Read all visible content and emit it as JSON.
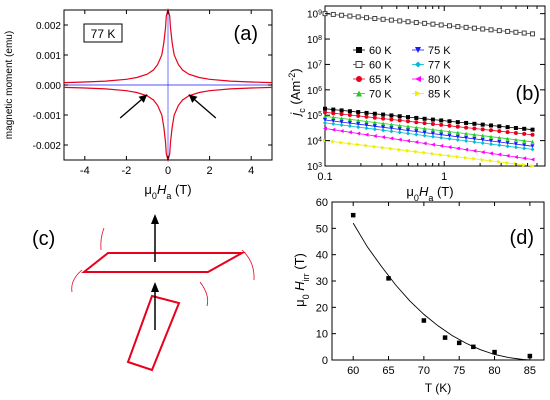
{
  "colors": {
    "red": "#e8001c",
    "axis": "#000000",
    "open": "#444444"
  },
  "chart_data": [
    {
      "id": "a",
      "panel_label": "(a)",
      "type": "line",
      "annotation": "77 K",
      "xlabel_parts": [
        "μ",
        "0",
        "H",
        "a",
        " (T)"
      ],
      "ylabel": "magnetic moment (emu)",
      "xlim": [
        -5,
        5
      ],
      "ylim": [
        -0.0025,
        0.0025
      ],
      "xticks": [
        -4,
        -2,
        0,
        2,
        4
      ],
      "xtick_labels": [
        "-4",
        "-2",
        "0",
        "2",
        "4"
      ],
      "yticks": [
        -0.002,
        -0.001,
        0.0,
        0.001,
        0.002
      ],
      "ytick_labels": [
        "-0.002",
        "-0.001",
        "0.000",
        "0.001",
        "0.002"
      ],
      "series": [
        {
          "color": "#e8001c",
          "points": [
            [
              -5,
              8e-05
            ],
            [
              -4,
              0.0001
            ],
            [
              -3,
              0.00013
            ],
            [
              -2,
              0.00019
            ],
            [
              -1.5,
              0.00025
            ],
            [
              -1,
              0.00036
            ],
            [
              -0.7,
              0.0005
            ],
            [
              -0.5,
              0.00068
            ],
            [
              -0.3,
              0.001
            ],
            [
              -0.2,
              0.0014
            ],
            [
              -0.12,
              0.0019
            ],
            [
              -0.08,
              0.0023
            ],
            [
              0,
              0.0025
            ],
            [
              0.08,
              0.0023
            ],
            [
              0.12,
              0.0019
            ],
            [
              0.2,
              0.0014
            ],
            [
              0.3,
              0.001
            ],
            [
              0.5,
              0.00068
            ],
            [
              0.7,
              0.0005
            ],
            [
              1,
              0.00036
            ],
            [
              1.5,
              0.00025
            ],
            [
              2,
              0.00019
            ],
            [
              3,
              0.00013
            ],
            [
              4,
              0.0001
            ],
            [
              5,
              8e-05
            ]
          ]
        },
        {
          "color": "#e8001c",
          "points": [
            [
              -5,
              -8e-05
            ],
            [
              -4,
              -0.0001
            ],
            [
              -3,
              -0.00013
            ],
            [
              -2,
              -0.00019
            ],
            [
              -1.5,
              -0.00025
            ],
            [
              -1,
              -0.00036
            ],
            [
              -0.7,
              -0.0005
            ],
            [
              -0.5,
              -0.00068
            ],
            [
              -0.3,
              -0.001
            ],
            [
              -0.2,
              -0.0014
            ],
            [
              -0.12,
              -0.0019
            ],
            [
              -0.08,
              -0.0023
            ],
            [
              0,
              -0.0025
            ],
            [
              0.08,
              -0.0023
            ],
            [
              0.12,
              -0.0019
            ],
            [
              0.2,
              -0.0014
            ],
            [
              0.3,
              -0.001
            ],
            [
              0.5,
              -0.00068
            ],
            [
              0.7,
              -0.0005
            ],
            [
              1,
              -0.00036
            ],
            [
              1.5,
              -0.00025
            ],
            [
              2,
              -0.00019
            ],
            [
              3,
              -0.00013
            ],
            [
              4,
              -0.0001
            ],
            [
              5,
              -8e-05
            ]
          ]
        }
      ],
      "arrows": [
        {
          "from": [
            -2.3,
            -0.0011
          ],
          "to": [
            -1.0,
            -0.00032
          ]
        },
        {
          "from": [
            2.3,
            -0.0011
          ],
          "to": [
            1.0,
            -0.00032
          ]
        }
      ]
    },
    {
      "id": "b",
      "panel_label": "(b)",
      "type": "scatter",
      "xscale": "log",
      "yscale": "log",
      "ylabel_parts": [
        "j",
        "c",
        " (Am",
        "-2",
        ")"
      ],
      "xlabel_parts": [
        "μ",
        "0",
        "H",
        "a",
        " (T)"
      ],
      "xlim": [
        0.1,
        7
      ],
      "ylim": [
        1000,
        2000000000
      ],
      "xticks": [
        0.1,
        1
      ],
      "xtick_labels": [
        "0.1",
        "1"
      ],
      "yticks": [
        1000,
        10000,
        100000,
        1000000,
        10000000,
        100000000,
        1000000000
      ],
      "ytick_labels": [
        [
          "10",
          "3"
        ],
        [
          "10",
          "4"
        ],
        [
          "10",
          "5"
        ],
        [
          "10",
          "6"
        ],
        [
          "10",
          "7"
        ],
        [
          "10",
          "8"
        ],
        [
          "10",
          "9"
        ]
      ],
      "legend": [
        {
          "name": "60 K",
          "color": "#000000",
          "marker": "square"
        },
        {
          "name": "60 K",
          "color": "#444444",
          "marker": "open-square"
        },
        {
          "name": "65 K",
          "color": "#e8001c",
          "marker": "circle"
        },
        {
          "name": "70 K",
          "color": "#22cc22",
          "marker": "triangle-up"
        },
        {
          "name": "75 K",
          "color": "#1a1aff",
          "marker": "triangle-down"
        },
        {
          "name": "77 K",
          "color": "#00bcd4",
          "marker": "diamond"
        },
        {
          "name": "80 K",
          "color": "#ff00ff",
          "marker": "triangle-left"
        },
        {
          "name": "85 K",
          "color": "#eeee00",
          "marker": "triangle-right"
        }
      ],
      "series": [
        {
          "name": "60 K",
          "color": "#000000",
          "marker": "square",
          "start": 180000,
          "end": 27000
        },
        {
          "name": "60 K",
          "color": "#444444",
          "marker": "open-square",
          "start": 1000000000,
          "end": 160000000
        },
        {
          "name": "65 K",
          "color": "#e8001c",
          "marker": "circle",
          "start": 130000,
          "end": 17000
        },
        {
          "name": "70 K",
          "color": "#22cc22",
          "marker": "triangle-up",
          "start": 90000,
          "end": 9000
        },
        {
          "name": "75 K",
          "color": "#1a1aff",
          "marker": "triangle-down",
          "start": 65000,
          "end": 6000
        },
        {
          "name": "77 K",
          "color": "#00bcd4",
          "marker": "diamond",
          "start": 50000,
          "end": 4500
        },
        {
          "name": "80 K",
          "color": "#ff00ff",
          "marker": "triangle-left",
          "start": 30000,
          "end": 1800
        },
        {
          "name": "85 K",
          "color": "#eeee00",
          "marker": "triangle-right",
          "start": 10000,
          "end": 1000
        }
      ]
    },
    {
      "id": "d",
      "panel_label": "(d)",
      "type": "scatter",
      "xlabel": "T (K)",
      "ylabel_parts": [
        "μ",
        "0",
        " H",
        "irr",
        " (T)"
      ],
      "xlim": [
        57,
        87
      ],
      "ylim": [
        0,
        60
      ],
      "xticks": [
        60,
        65,
        70,
        75,
        80,
        85
      ],
      "xtick_labels": [
        "60",
        "65",
        "70",
        "75",
        "80",
        "85"
      ],
      "yticks": [
        0,
        10,
        20,
        30,
        40,
        50,
        60
      ],
      "ytick_labels": [
        "0",
        "10",
        "20",
        "30",
        "40",
        "50",
        "60"
      ],
      "points": [
        [
          60,
          55
        ],
        [
          65,
          31
        ],
        [
          70,
          15
        ],
        [
          73,
          8.5
        ],
        [
          75,
          6.5
        ],
        [
          77,
          5
        ],
        [
          80,
          3
        ],
        [
          85,
          1.5
        ]
      ],
      "fit": [
        [
          58,
          62
        ],
        [
          60,
          52
        ],
        [
          62,
          43
        ],
        [
          64,
          35.5
        ],
        [
          66,
          28.5
        ],
        [
          68,
          22.5
        ],
        [
          70,
          17.3
        ],
        [
          72,
          13
        ],
        [
          74,
          9.3
        ],
        [
          76,
          6.3
        ],
        [
          78,
          3.9
        ],
        [
          80,
          2.1
        ],
        [
          82,
          0.9
        ],
        [
          84,
          0.2
        ],
        [
          85,
          0
        ]
      ]
    }
  ],
  "diagram_c": {
    "panel_label": "(c)"
  }
}
